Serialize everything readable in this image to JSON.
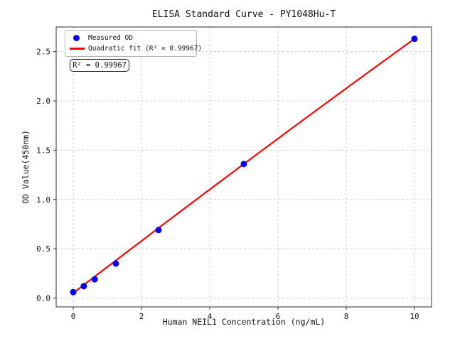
{
  "chart_data": {
    "type": "scatter",
    "title": "ELISA Standard Curve - PY1048Hu-T",
    "xlabel": "Human NEIL1 Concentration (ng/mL)",
    "ylabel": "OD Value(450nm)",
    "xlim": [
      -0.5,
      10.5
    ],
    "ylim": [
      -0.09,
      2.75
    ],
    "grid": true,
    "xticks": {
      "values": [
        0,
        2,
        4,
        6,
        8,
        10
      ],
      "labels": [
        "0",
        "2",
        "4",
        "6",
        "8",
        "10"
      ]
    },
    "yticks": {
      "values": [
        0,
        0.5,
        1.0,
        1.5,
        2.0,
        2.5
      ],
      "labels": [
        "0.0",
        "0.5",
        "1.0",
        "1.5",
        "2.0",
        "2.5"
      ]
    },
    "series": [
      {
        "name": "Measured OD",
        "type": "scatter",
        "color": "#0000ff",
        "x": [
          0,
          0.31,
          0.63,
          1.25,
          2.5,
          5,
          10
        ],
        "y": [
          0.06,
          0.12,
          0.19,
          0.35,
          0.69,
          1.36,
          2.63
        ]
      },
      {
        "name": "Quadratic fit",
        "type": "line",
        "color": "#ff0000",
        "x_range": [
          0,
          10
        ],
        "fit_coefficients": {
          "a": -0.0008,
          "b": 0.266,
          "c": 0.05
        }
      }
    ],
    "legend": {
      "position": "upper-left",
      "entries": [
        {
          "label": "Measured OD",
          "marker": "dot",
          "color": "#0000ff"
        },
        {
          "label": "Quadratic fit (R² = 0.99967)",
          "marker": "line",
          "color": "#ff0000"
        }
      ]
    },
    "annotation": "R² = 0.99967",
    "r_squared": 0.99967,
    "colors": {
      "measured": "#0000ff",
      "fit": "#ff0000",
      "grid": "#cfcfcf",
      "axis": "#2b2b2b",
      "text": "#111111",
      "background": "#ffffff"
    }
  }
}
